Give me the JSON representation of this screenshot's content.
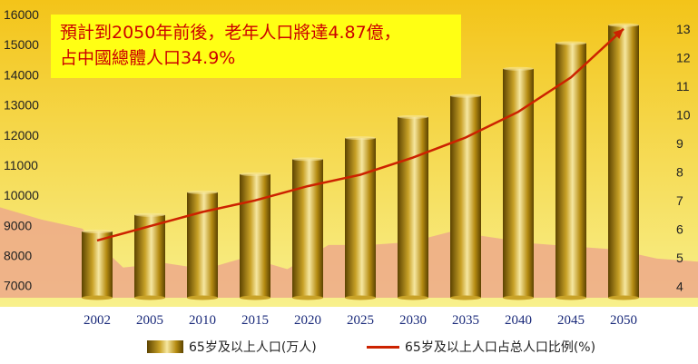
{
  "callout": {
    "line1": "預計到2050年前後，老年人口將達4.87億，",
    "line2": "占中國總體人口34.9%"
  },
  "legend": {
    "bar_label": "65岁及以上人口(万人)",
    "line_label": "65岁及以上人口占总人口比例(%)"
  },
  "colors": {
    "line": "#cc2200",
    "bar_dark": "#5c4300",
    "bar_mid": "#c9a227",
    "bar_light": "#f6e7a0",
    "background_top": "#f3c419",
    "background_bottom": "#f8f08c",
    "area": "#eda98a",
    "callout_bg": "#ffff14",
    "callout_text": "#cc0000"
  },
  "chart_data": {
    "type": "bar",
    "categories": [
      "2002",
      "2005",
      "2010",
      "2015",
      "2020",
      "2025",
      "2030",
      "2035",
      "2040",
      "2045",
      "2050"
    ],
    "series": [
      {
        "name": "65岁及以上人口(万人)",
        "type": "bar",
        "axis": "left",
        "values": [
          8800,
          9350,
          10100,
          10700,
          11200,
          11900,
          12600,
          13300,
          14200,
          15050,
          15650
        ]
      },
      {
        "name": "65岁及以上人口占总人口比例(%)",
        "type": "line",
        "axis": "right",
        "values": [
          5.6,
          6.1,
          6.6,
          7.0,
          7.5,
          7.9,
          8.5,
          9.2,
          10.1,
          11.3,
          13.0
        ]
      }
    ],
    "background_area": [
      9600,
      9200,
      8900,
      7600,
      7750,
      7550,
      7950,
      7550,
      8350,
      8350,
      8450,
      8800,
      8600,
      8400,
      8300,
      8200,
      7900,
      7800
    ],
    "y_left": {
      "ticks": [
        7000,
        8000,
        9000,
        10000,
        11000,
        12000,
        13000,
        14000,
        15000,
        16000
      ],
      "range": [
        6600,
        16000
      ]
    },
    "y_right": {
      "ticks": [
        4,
        5,
        6,
        7,
        8,
        9,
        10,
        11,
        12,
        13
      ],
      "range": [
        3.6,
        13.5
      ]
    },
    "grid": false
  }
}
